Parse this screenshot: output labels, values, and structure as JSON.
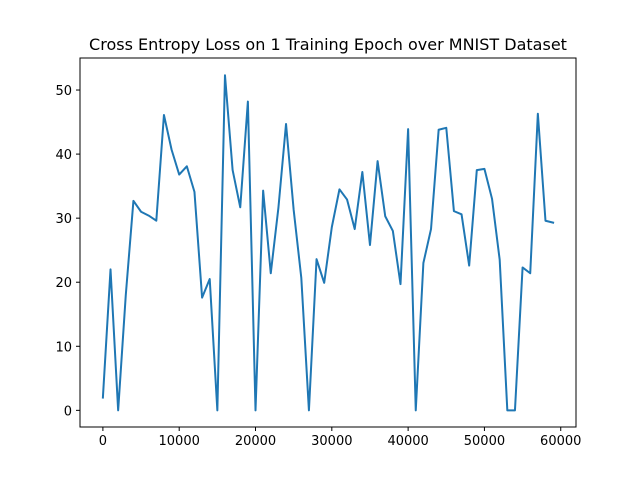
{
  "chart_data": {
    "type": "line",
    "title": "Cross Entropy Loss on 1 Training Epoch over MNIST Dataset",
    "xlabel": "",
    "ylabel": "",
    "xlim": [
      -3000,
      62000
    ],
    "ylim": [
      -2.6,
      55
    ],
    "xticks": [
      0,
      10000,
      20000,
      30000,
      40000,
      50000,
      60000
    ],
    "yticks": [
      0,
      10,
      20,
      30,
      40,
      50
    ],
    "grid": false,
    "legend": "none",
    "line_color": "#1f77b4",
    "series": [
      {
        "x": [
          0,
          1000,
          2000,
          3000,
          4000,
          5000,
          6000,
          7000,
          8000,
          9000,
          10000,
          11000,
          12000,
          13000,
          14000,
          15000,
          16000,
          17000,
          18000,
          19000,
          20000,
          21000,
          22000,
          23000,
          24000,
          25000,
          26000,
          27000,
          28000,
          29000,
          30000,
          31000,
          32000,
          33000,
          34000,
          35000,
          36000,
          37000,
          38000,
          39000,
          40000,
          41000,
          42000,
          43000,
          44000,
          45000,
          46000,
          47000,
          48000,
          49000,
          50000,
          51000,
          52000,
          53000,
          54000,
          55000,
          56000,
          57000,
          58000,
          59000
        ],
        "values": [
          2.0,
          22.0,
          0.0,
          18.0,
          32.7,
          31.0,
          30.4,
          29.6,
          46.1,
          40.7,
          36.8,
          38.1,
          34.1,
          17.6,
          20.5,
          0.0,
          52.3,
          37.5,
          31.7,
          48.2,
          0.0,
          34.3,
          21.4,
          31.6,
          44.7,
          31.3,
          20.7,
          0.0,
          23.6,
          19.9,
          28.6,
          34.5,
          32.9,
          28.3,
          37.2,
          25.8,
          38.9,
          30.3,
          28.0,
          19.7,
          43.9,
          0.0,
          23.0,
          28.3,
          43.8,
          44.1,
          31.1,
          30.6,
          22.6,
          37.5,
          37.7,
          33.0,
          23.5,
          0.0,
          0.0,
          22.3,
          21.4,
          46.3,
          29.6,
          29.3
        ]
      }
    ]
  }
}
